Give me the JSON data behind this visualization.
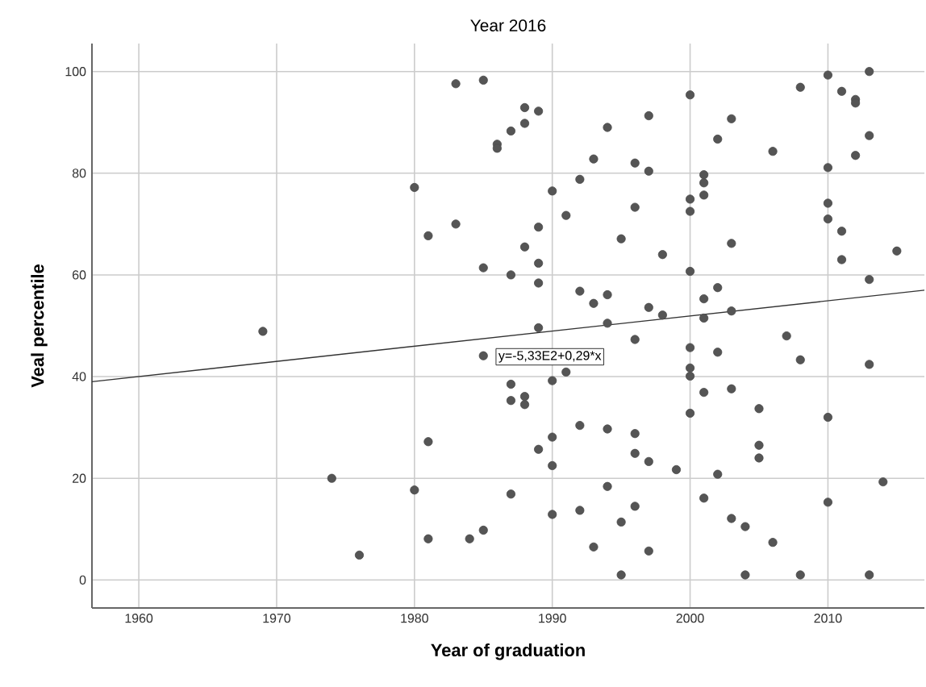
{
  "chart_data": {
    "type": "scatter",
    "title": "Year 2016",
    "xlabel": "Year of graduation",
    "ylabel": "Veal percentile",
    "annotations": [
      "y=-5,33E2+0,29*x"
    ],
    "xlim": [
      1956.6,
      2017
    ],
    "ylim": [
      -5.5,
      105.5
    ],
    "xticks": [
      1960,
      1970,
      1980,
      1990,
      2000,
      2010
    ],
    "yticks": [
      0,
      20,
      40,
      60,
      80,
      100
    ],
    "grid": true,
    "series": [
      {
        "marker": "circle",
        "color": "#555555",
        "x": [
          1983,
          1985,
          1986,
          1986,
          1980,
          1981,
          1983,
          1985,
          1987,
          1988,
          1988,
          1989,
          1990,
          1987,
          1988,
          1989,
          1989,
          1989,
          1991,
          1992,
          1993,
          1994,
          1992,
          1993,
          1994,
          1995,
          1996,
          1996,
          1997,
          1997,
          1998,
          1997,
          1998,
          2000,
          2000,
          2000,
          2000,
          2001,
          2001,
          2001,
          2001,
          2001,
          2002,
          2002,
          2003,
          2003,
          2003,
          2006,
          2008,
          2010,
          2010,
          2010,
          2010,
          2011,
          2011,
          2011,
          2012,
          2012,
          2012,
          2013,
          2013,
          2013,
          2015,
          1969,
          1974,
          1976,
          1980,
          1981,
          1981,
          1984,
          1985,
          1985,
          1989,
          1994,
          1996,
          2000,
          2002,
          2007,
          2008,
          2013,
          1987,
          1987,
          1988,
          1988,
          1990,
          1991,
          2000,
          2000,
          2001,
          2003,
          2005,
          2010,
          2000,
          1992,
          1994,
          1996,
          1990,
          1989,
          1996,
          1997,
          1990,
          1999,
          2002,
          2005,
          2005,
          2014,
          1987,
          1994,
          1990,
          1992,
          1996,
          1995,
          1993,
          1997,
          2001,
          2003,
          2004,
          2006,
          2010,
          1995,
          2004,
          2008,
          2013
        ],
        "values": [
          97.6,
          98.3,
          85.7,
          84.9,
          77.2,
          67.7,
          70,
          61.4,
          88.3,
          92.9,
          89.8,
          92.2,
          76.5,
          60,
          65.5,
          69.4,
          62.3,
          58.4,
          71.7,
          78.8,
          82.8,
          89,
          56.8,
          54.4,
          56.1,
          67.1,
          82,
          73.3,
          91.3,
          80.4,
          64,
          53.6,
          52.1,
          95.4,
          74.9,
          72.5,
          60.7,
          79.7,
          78.1,
          75.7,
          55.3,
          51.5,
          86.7,
          57.5,
          90.7,
          66.2,
          52.9,
          84.3,
          96.9,
          99.3,
          81.1,
          74.1,
          71,
          96.1,
          68.6,
          63,
          94.5,
          93.8,
          83.5,
          100,
          87.4,
          59.1,
          64.7,
          48.9,
          20,
          4.9,
          17.7,
          27.2,
          8.1,
          8.1,
          9.8,
          44.1,
          49.6,
          50.5,
          47.3,
          45.7,
          44.8,
          48,
          43.3,
          42.4,
          38.5,
          35.3,
          36.1,
          34.5,
          39.2,
          40.9,
          41.7,
          40.1,
          36.9,
          37.6,
          33.7,
          32,
          32.8,
          30.4,
          29.7,
          28.8,
          28.1,
          25.7,
          24.9,
          23.3,
          22.5,
          21.7,
          20.8,
          26.5,
          24,
          19.3,
          16.9,
          18.4,
          12.9,
          13.7,
          14.5,
          11.4,
          6.5,
          5.7,
          16.1,
          12.1,
          10.5,
          7.4,
          15.3,
          1,
          1,
          1,
          1
        ]
      },
      {
        "type": "line",
        "marker": "none",
        "color": "#333333",
        "x": [
          1956.6,
          2017
        ],
        "values": [
          39,
          57
        ]
      }
    ]
  }
}
